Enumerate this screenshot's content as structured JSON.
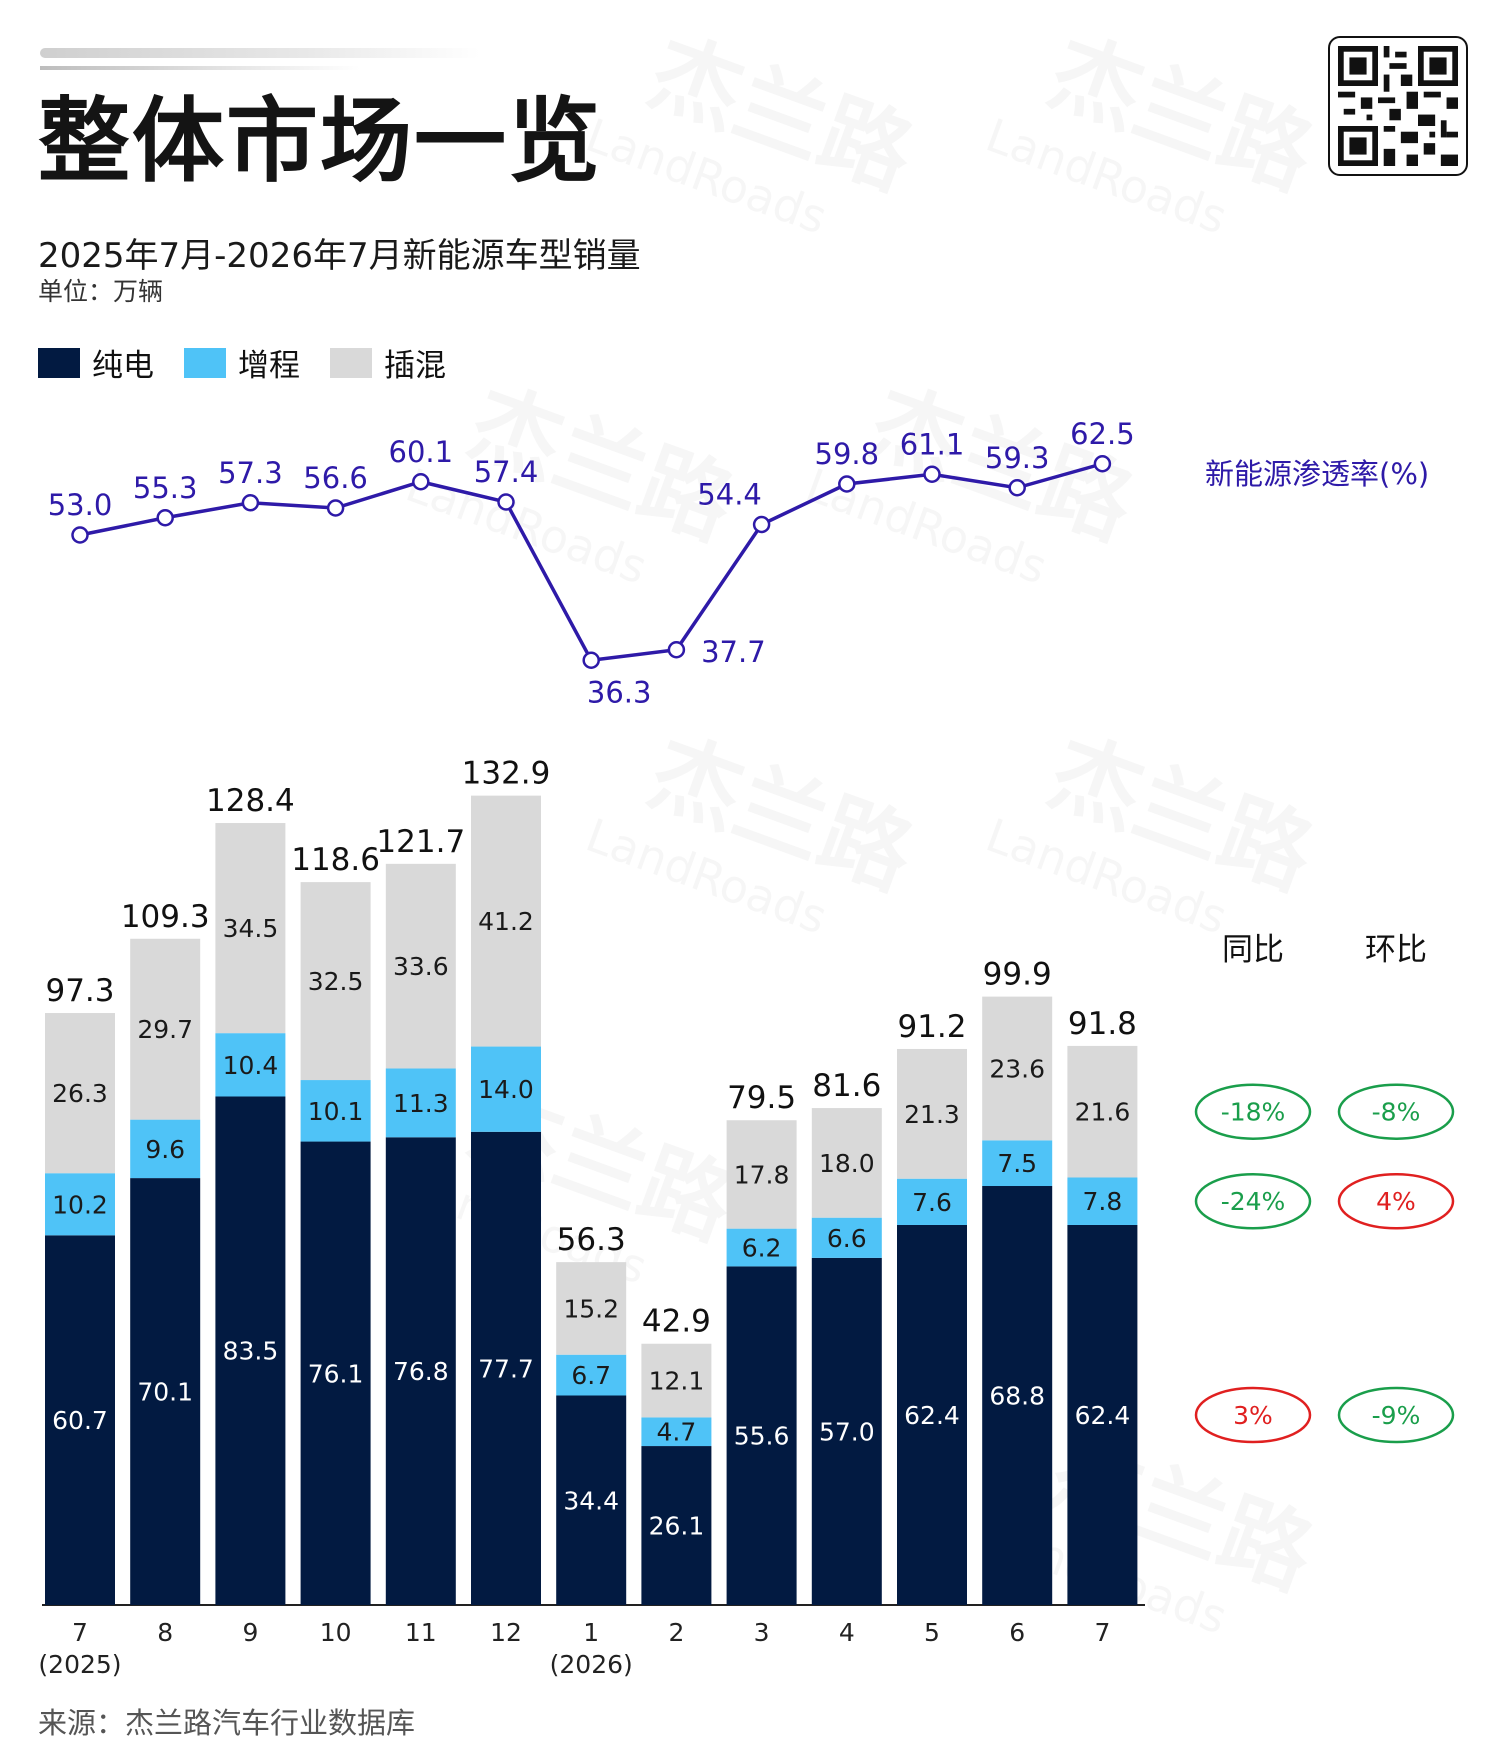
{
  "header": {
    "title": "整体市场一览",
    "subtitle": "2025年7月-2026年7月新能源车型销量",
    "unit": "单位：万辆"
  },
  "legend": [
    {
      "label": "纯电",
      "color": "#021a41"
    },
    {
      "label": "增程",
      "color": "#4fc3f7"
    },
    {
      "label": "插混",
      "color": "#d9d9d9"
    }
  ],
  "watermark_text": "杰兰路",
  "watermark_sub": "LandRoads",
  "footer": {
    "source": "来源：杰兰路汽车行业数据库"
  },
  "comparison": {
    "headers": [
      "同比",
      "环比"
    ],
    "rows": [
      {
        "series": "插混",
        "yoy": "-18%",
        "mom": "-8%",
        "yoy_status": "down",
        "mom_status": "down"
      },
      {
        "series": "增程",
        "yoy": "-24%",
        "mom": "4%",
        "yoy_status": "down",
        "mom_status": "up"
      },
      {
        "series": "纯电",
        "yoy": "3%",
        "mom": "-9%",
        "yoy_status": "up",
        "mom_status": "down"
      }
    ],
    "colors": {
      "down": "#1a9e4b",
      "up": "#e02020"
    }
  },
  "chart_data": [
    {
      "type": "line",
      "series_label": "新能源渗透率(%)",
      "color": "#2e1aa8",
      "categories": [
        "7",
        "8",
        "9",
        "10",
        "11",
        "12",
        "1",
        "2",
        "3",
        "4",
        "5",
        "6",
        "7"
      ],
      "values": [
        53.0,
        55.3,
        57.3,
        56.6,
        60.1,
        57.4,
        36.3,
        37.7,
        54.4,
        59.8,
        61.1,
        59.3,
        62.5
      ],
      "label_values": [
        "53.0",
        "55.3",
        "57.3",
        "56.6",
        "60.1",
        "57.4",
        "36.3",
        "37.7",
        "54.4",
        "59.8",
        "61.1",
        "59.3",
        "62.5"
      ]
    },
    {
      "type": "bar",
      "stacked": true,
      "categories": [
        "7",
        "8",
        "9",
        "10",
        "11",
        "12",
        "1",
        "2",
        "3",
        "4",
        "5",
        "6",
        "7"
      ],
      "year_labels": [
        "(2025)",
        "",
        "",
        "",
        "",
        "",
        "(2026)",
        "",
        "",
        "",
        "",
        "",
        ""
      ],
      "series": [
        {
          "name": "纯电",
          "color": "#021a41",
          "text_color": "#ffffff",
          "values": [
            60.7,
            70.1,
            83.5,
            76.1,
            76.8,
            77.7,
            34.4,
            26.1,
            55.6,
            57.0,
            62.4,
            68.8,
            62.4
          ],
          "label_values": [
            "60.7",
            "70.1",
            "83.5",
            "76.1",
            "76.8",
            "77.7",
            "34.4",
            "26.1",
            "55.6",
            "57.0",
            "62.4",
            "68.8",
            "62.4"
          ]
        },
        {
          "name": "增程",
          "color": "#4fc3f7",
          "text_color": "#1a1a1a",
          "values": [
            10.2,
            9.6,
            10.4,
            10.1,
            11.3,
            14.0,
            6.7,
            4.7,
            6.2,
            6.6,
            7.6,
            7.5,
            7.8
          ],
          "label_values": [
            "10.2",
            "9.6",
            "10.4",
            "10.1",
            "11.3",
            "14.0",
            "6.7",
            "4.7",
            "6.2",
            "6.6",
            "7.6",
            "7.5",
            "7.8"
          ]
        },
        {
          "name": "插混",
          "color": "#d9d9d9",
          "text_color": "#1a1a1a",
          "values": [
            26.3,
            29.7,
            34.5,
            32.5,
            33.6,
            41.2,
            15.2,
            12.1,
            17.8,
            18.0,
            21.3,
            23.6,
            21.6
          ],
          "label_values": [
            "26.3",
            "29.7",
            "34.5",
            "32.5",
            "33.6",
            "41.2",
            "15.2",
            "12.1",
            "17.8",
            "18.0",
            "21.3",
            "23.6",
            "21.6"
          ]
        }
      ],
      "totals": [
        97.3,
        109.3,
        128.4,
        118.6,
        121.7,
        132.9,
        56.3,
        42.9,
        79.5,
        81.6,
        91.2,
        99.9,
        91.8
      ],
      "total_labels": [
        "97.3",
        "109.3",
        "128.4",
        "118.6",
        "121.7",
        "132.9",
        "56.3",
        "42.9",
        "79.5",
        "81.6",
        "91.2",
        "99.9",
        "91.8"
      ]
    }
  ]
}
